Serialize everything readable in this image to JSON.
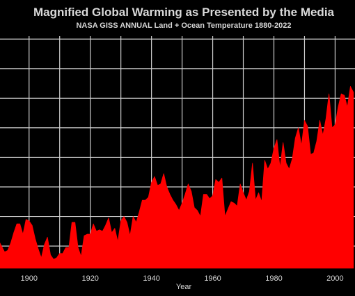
{
  "chart_data": {
    "type": "area",
    "title": "Magnified Global Warming as Presented by the Media",
    "subtitle": "NASA GISS ANNUAL Land + Ocean Temperature 1880-2022",
    "xlabel": "Year",
    "ylabel": "",
    "xlim": [
      1890.5,
      2006.5
    ],
    "ylim": [
      -0.55,
      1.02
    ],
    "grid": true,
    "x_tick_labels": [
      "1900",
      "1920",
      "1940",
      "1960",
      "1980",
      "2000"
    ],
    "series": [
      {
        "color": "#ff0000",
        "x": [
          1890,
          1891,
          1892,
          1893,
          1894,
          1895,
          1896,
          1897,
          1898,
          1899,
          1900,
          1901,
          1902,
          1903,
          1904,
          1905,
          1906,
          1907,
          1908,
          1909,
          1910,
          1911,
          1912,
          1913,
          1914,
          1915,
          1916,
          1917,
          1918,
          1919,
          1920,
          1921,
          1922,
          1923,
          1924,
          1925,
          1926,
          1927,
          1928,
          1929,
          1930,
          1931,
          1932,
          1933,
          1934,
          1935,
          1936,
          1937,
          1938,
          1939,
          1940,
          1941,
          1942,
          1943,
          1944,
          1945,
          1946,
          1947,
          1948,
          1949,
          1950,
          1951,
          1952,
          1953,
          1954,
          1955,
          1956,
          1957,
          1958,
          1959,
          1960,
          1961,
          1962,
          1963,
          1964,
          1965,
          1966,
          1967,
          1968,
          1969,
          1970,
          1971,
          1972,
          1973,
          1974,
          1975,
          1976,
          1977,
          1978,
          1979,
          1980,
          1981,
          1982,
          1983,
          1984,
          1985,
          1986,
          1987,
          1988,
          1989,
          1990,
          1991,
          1992,
          1993,
          1994,
          1995,
          1996,
          1997,
          1998,
          1999,
          2000,
          2001,
          2002,
          2003,
          2004,
          2005,
          2006
        ],
        "values": [
          -0.36,
          -0.4,
          -0.44,
          -0.43,
          -0.38,
          -0.31,
          -0.25,
          -0.25,
          -0.32,
          -0.22,
          -0.23,
          -0.26,
          -0.35,
          -0.42,
          -0.48,
          -0.39,
          -0.34,
          -0.46,
          -0.49,
          -0.48,
          -0.45,
          -0.45,
          -0.41,
          -0.41,
          -0.24,
          -0.24,
          -0.41,
          -0.47,
          -0.33,
          -0.32,
          -0.32,
          -0.25,
          -0.3,
          -0.29,
          -0.3,
          -0.26,
          -0.21,
          -0.31,
          -0.28,
          -0.37,
          -0.23,
          -0.2,
          -0.24,
          -0.33,
          -0.2,
          -0.24,
          -0.17,
          -0.09,
          -0.09,
          -0.07,
          0.03,
          0.07,
          0.01,
          0.02,
          0.09,
          0.0,
          -0.05,
          -0.09,
          -0.12,
          -0.16,
          -0.11,
          -0.05,
          0.02,
          -0.03,
          -0.14,
          -0.16,
          -0.2,
          -0.05,
          -0.05,
          -0.08,
          -0.06,
          0.05,
          0.03,
          0.06,
          -0.2,
          -0.15,
          -0.1,
          -0.11,
          -0.13,
          0.02,
          -0.04,
          -0.09,
          -0.03,
          0.16,
          -0.09,
          -0.04,
          -0.1,
          0.18,
          0.12,
          0.16,
          0.26,
          0.32,
          0.13,
          0.3,
          0.16,
          0.12,
          0.19,
          0.33,
          0.4,
          0.28,
          0.45,
          0.41,
          0.22,
          0.23,
          0.31,
          0.45,
          0.35,
          0.46,
          0.63,
          0.4,
          0.42,
          0.54,
          0.63,
          0.62,
          0.54,
          0.68,
          0.64
        ]
      }
    ]
  }
}
